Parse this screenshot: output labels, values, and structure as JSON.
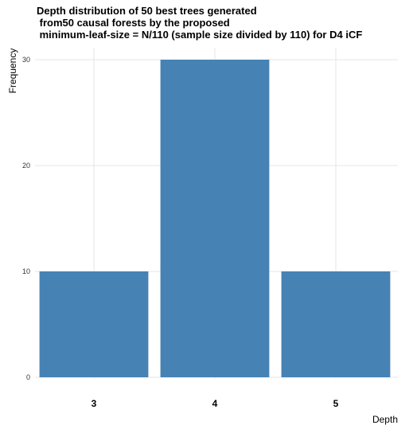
{
  "chart_data": {
    "type": "bar",
    "title_lines": [
      "Depth distribution of 50 best trees generated",
      " from50 causal forests by the proposed",
      " minimum-leaf-size = N/110 (sample size divided by 110) for D4 iCF"
    ],
    "categories": [
      "3",
      "4",
      "5"
    ],
    "values": [
      10,
      30,
      10
    ],
    "xlabel": "Depth",
    "ylabel": "Frequency",
    "ylim": [
      0,
      30
    ],
    "yticks": [
      0,
      10,
      20,
      30
    ],
    "grid": true,
    "bar_color": "#4682b4"
  }
}
